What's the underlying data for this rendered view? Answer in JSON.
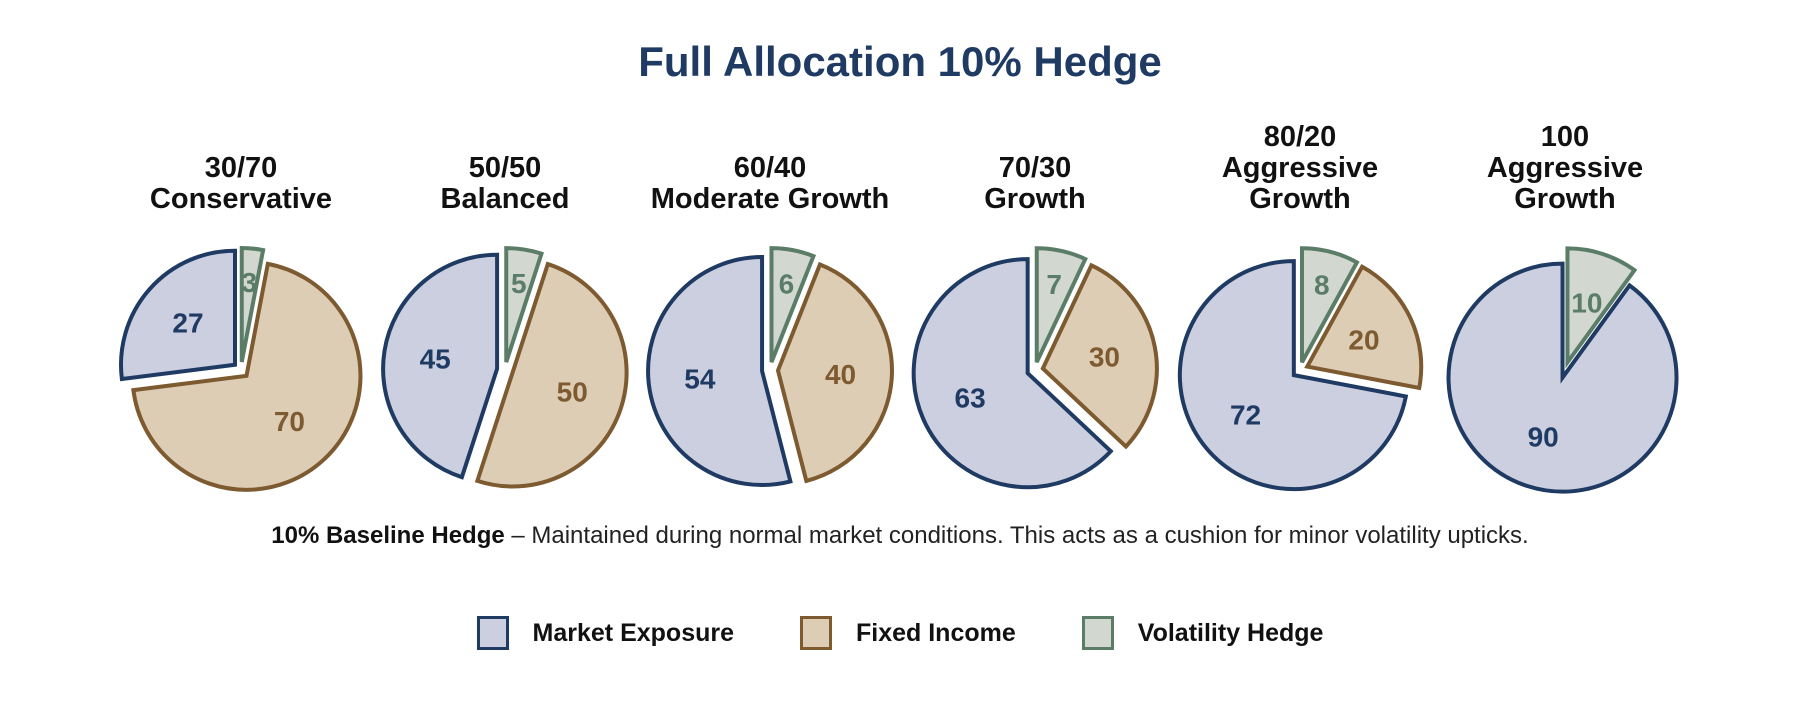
{
  "colors": {
    "market_fill": "#cbcfe0",
    "market_stroke": "#1f3b63",
    "fixed_fill": "#ddcdb4",
    "fixed_stroke": "#7d5a30",
    "hedge_fill": "#d2d8d0",
    "hedge_stroke": "#5b7d67",
    "title": "#1f3b63"
  },
  "note": {
    "bold": "10% Baseline Hedge",
    "text": " – Maintained during normal market conditions. This acts as a cushion for minor volatility upticks."
  },
  "chart_data": {
    "type": "pie",
    "title": "Full Allocation 10% Hedge",
    "series_names": [
      "Market Exposure",
      "Fixed Income",
      "Volatility Hedge"
    ],
    "legend_position": "bottom",
    "pies": [
      {
        "label_lines": [
          "30/70",
          "Conservative"
        ],
        "values": [
          27,
          70,
          3
        ]
      },
      {
        "label_lines": [
          "50/50",
          "Balanced"
        ],
        "values": [
          45,
          50,
          5
        ]
      },
      {
        "label_lines": [
          "60/40",
          "Moderate Growth"
        ],
        "values": [
          54,
          40,
          6
        ]
      },
      {
        "label_lines": [
          "70/30",
          "Growth"
        ],
        "values": [
          63,
          30,
          7
        ]
      },
      {
        "label_lines": [
          "80/20",
          "Aggressive",
          "Growth"
        ],
        "values": [
          72,
          20,
          8
        ]
      },
      {
        "label_lines": [
          "100",
          "Aggressive",
          "Growth"
        ],
        "values": [
          90,
          0,
          10
        ]
      }
    ]
  }
}
